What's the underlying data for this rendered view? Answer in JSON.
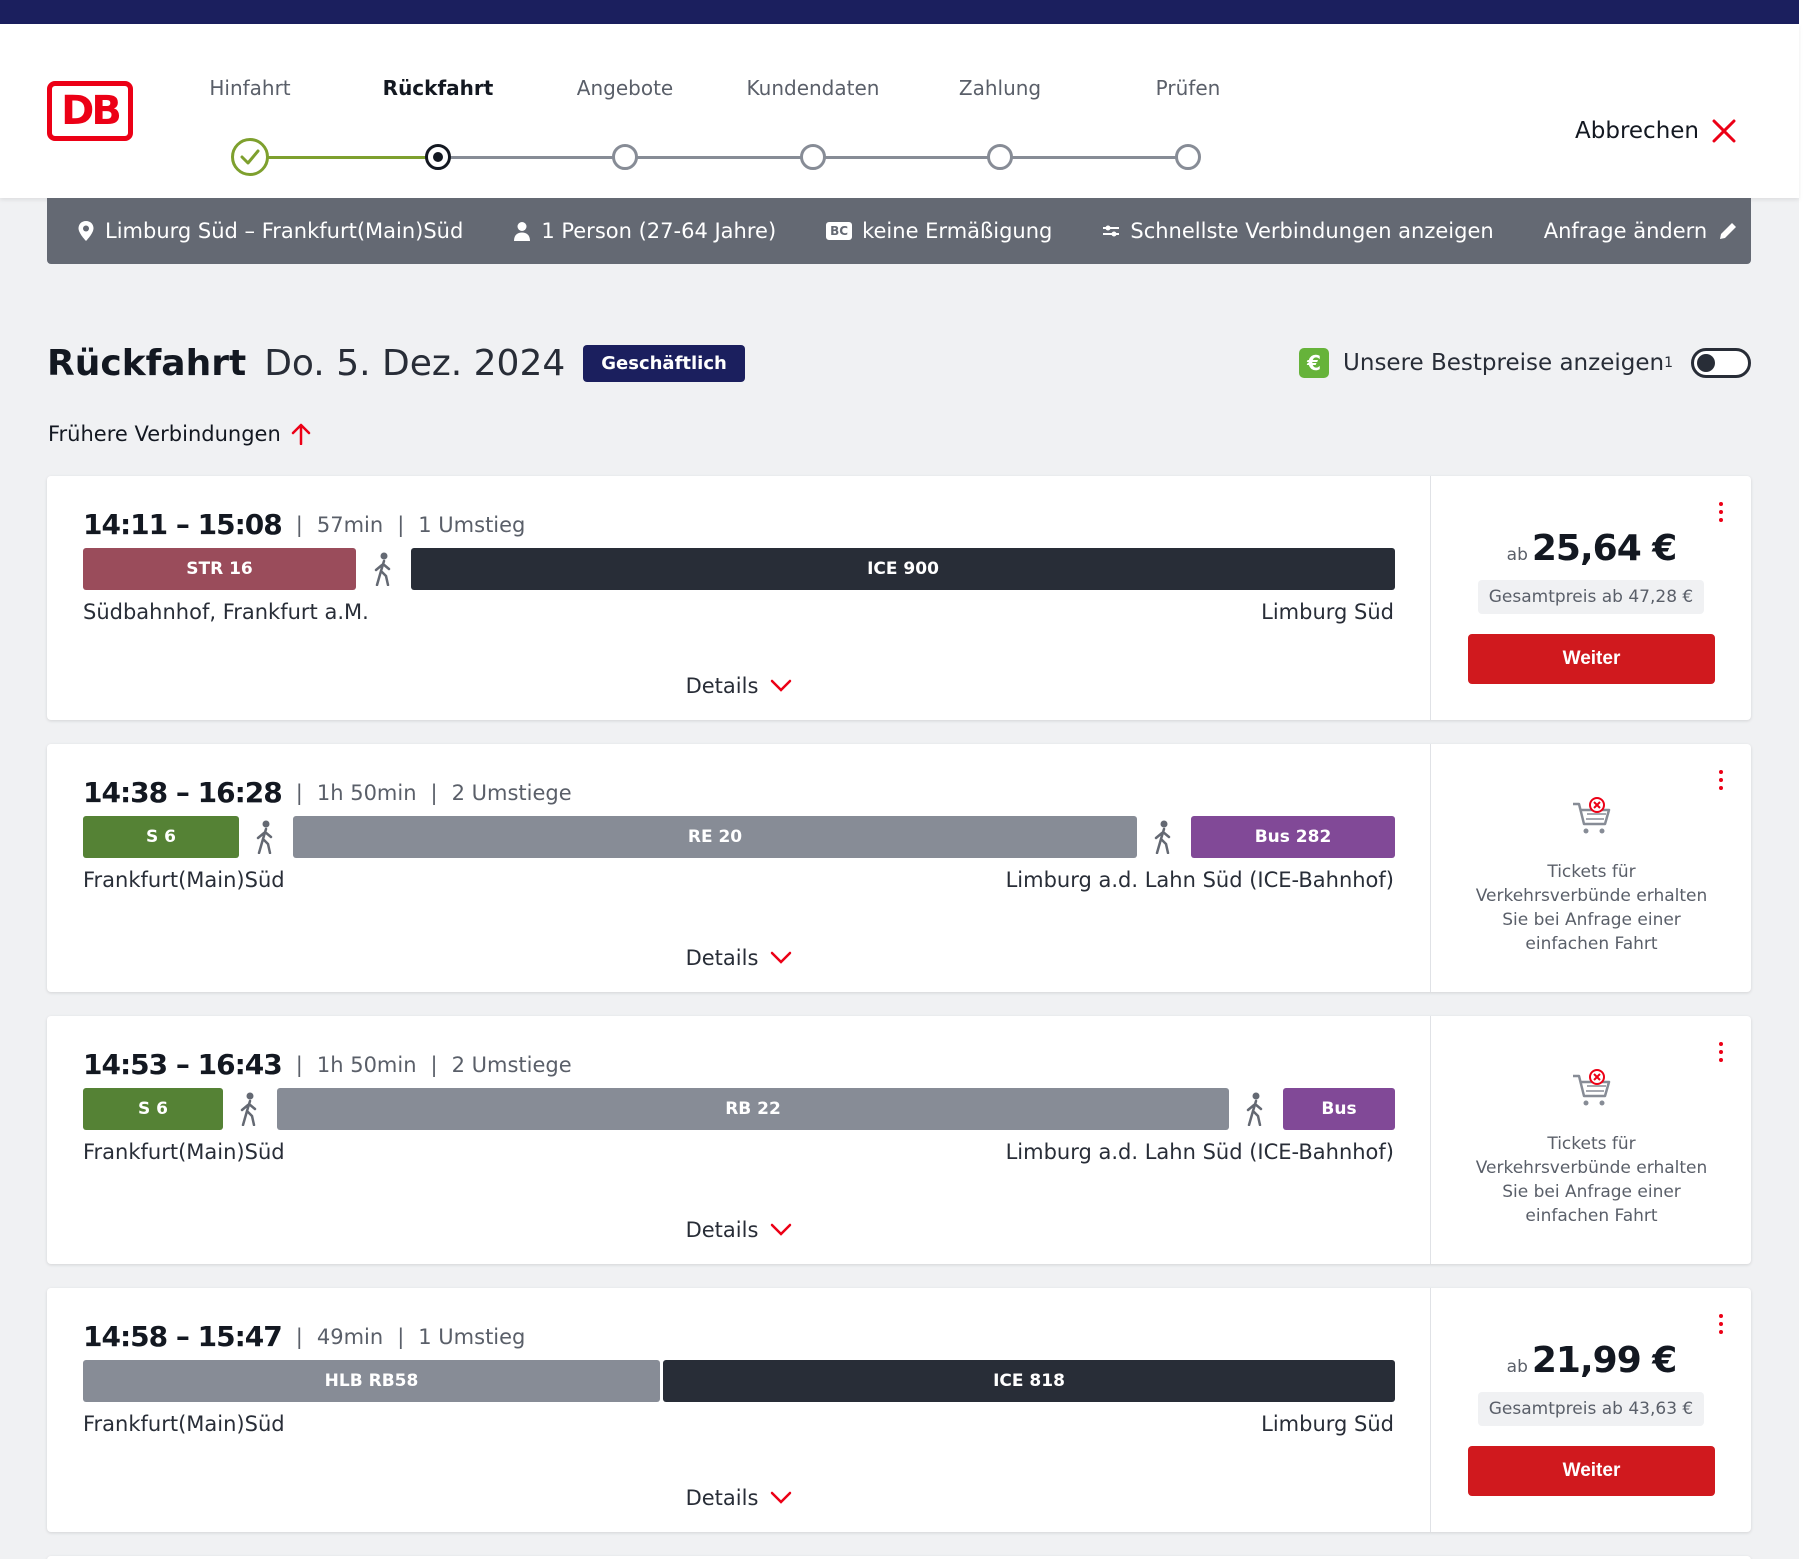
{
  "header": {
    "logo_text": "DB",
    "steps": [
      {
        "label": "Hinfahrt",
        "state": "done"
      },
      {
        "label": "Rückfahrt",
        "state": "active"
      },
      {
        "label": "Angebote",
        "state": "open"
      },
      {
        "label": "Kundendaten",
        "state": "open"
      },
      {
        "label": "Zahlung",
        "state": "open"
      },
      {
        "label": "Prüfen",
        "state": "open"
      }
    ],
    "cancel_label": "Abbrechen"
  },
  "filter": {
    "route": "Limburg Süd – Frankfurt(Main)Süd",
    "persons": "1 Person (27-64 Jahre)",
    "bc_icon": "BC",
    "discount": "keine Ermäßigung",
    "fastest": "Schnellste Verbindungen anzeigen",
    "change": "Anfrage ändern"
  },
  "title": {
    "main": "Rückfahrt",
    "date": "Do. 5. Dez. 2024",
    "badge": "Geschäftlich",
    "euro_icon": "€",
    "bestprice": "Unsere Bestpreise anzeigen",
    "bestprice_sup": "1"
  },
  "earlier_label": "Frühere Verbindungen",
  "connections": [
    {
      "dep": "14:11",
      "arr": "15:08",
      "duration": "57min",
      "changes": "1 Umstieg",
      "from": "Südbahnhof, Frankfurt a.M.",
      "to": "Limburg Süd",
      "segments": [
        {
          "label": "STR 16",
          "color": "#9a4c5b"
        },
        {
          "label": "ICE 900",
          "color": "#282d37"
        }
      ],
      "details": "Details",
      "price_prefix": "ab",
      "price": "25,64 €",
      "total": "Gesamtpreis ab 47,28 €",
      "button": "Weiter"
    },
    {
      "dep": "14:38",
      "arr": "16:28",
      "duration": "1h 50min",
      "changes": "2 Umstiege",
      "from": "Frankfurt(Main)Süd",
      "to": "Limburg a.d. Lahn Süd (ICE-Bahnhof)",
      "segments": [
        {
          "label": "S 6",
          "color": "#558235"
        },
        {
          "label": "RE 20",
          "color": "#878c96"
        },
        {
          "label": "Bus 282",
          "color": "#814997"
        }
      ],
      "details": "Details",
      "notice": "Tickets für Verkehrsverbünde erhalten Sie bei Anfrage einer einfachen Fahrt"
    },
    {
      "dep": "14:53",
      "arr": "16:43",
      "duration": "1h 50min",
      "changes": "2 Umstiege",
      "from": "Frankfurt(Main)Süd",
      "to": "Limburg a.d. Lahn Süd (ICE-Bahnhof)",
      "segments": [
        {
          "label": "S 6",
          "color": "#558235"
        },
        {
          "label": "RB 22",
          "color": "#878c96"
        },
        {
          "label": "Bus",
          "color": "#814997"
        }
      ],
      "details": "Details",
      "notice": "Tickets für Verkehrsverbünde erhalten Sie bei Anfrage einer einfachen Fahrt"
    },
    {
      "dep": "14:58",
      "arr": "15:47",
      "duration": "49min",
      "changes": "1 Umstieg",
      "from": "Frankfurt(Main)Süd",
      "to": "Limburg Süd",
      "segments": [
        {
          "label": "HLB RB58",
          "color": "#878c96"
        },
        {
          "label": "ICE 818",
          "color": "#282d37"
        }
      ],
      "details": "Details",
      "price_prefix": "ab",
      "price": "21,99 €",
      "total": "Gesamtpreis ab 43,63 €",
      "button": "Weiter"
    }
  ]
}
